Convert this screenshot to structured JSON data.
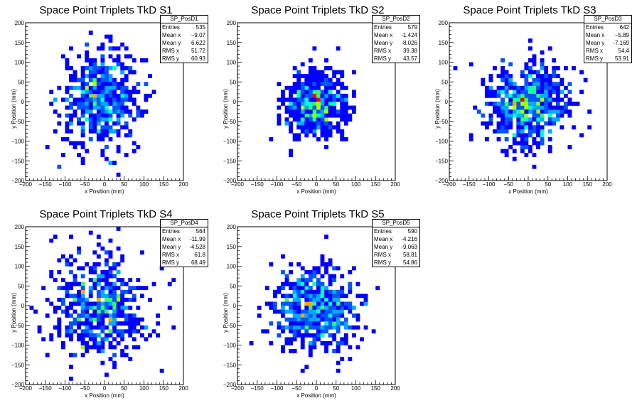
{
  "chart_data": [
    {
      "type": "heatmap",
      "title": "Space Point Triplets TkD S1",
      "xlabel": "x Position (mm)",
      "ylabel": "y Position (mm)",
      "xlim": [
        -200,
        200
      ],
      "ylim": [
        -200,
        200
      ],
      "xticks": [
        "−200",
        "−150",
        "−100",
        "−50",
        "0",
        "50",
        "100",
        "150",
        "200"
      ],
      "yticks": [
        "−200",
        "−150",
        "−100",
        "−50",
        "0",
        "50",
        "100",
        "150",
        "200"
      ],
      "stats": {
        "name": "SP_PosD1",
        "rows": [
          {
            "label": "Entries",
            "value": "535"
          },
          {
            "label": "Mean x",
            "value": "−9.07"
          },
          {
            "label": "Mean y",
            "value": "6.622"
          },
          {
            "label": "RMS x",
            "value": "51.72"
          },
          {
            "label": "RMS y",
            "value": "60.93"
          }
        ]
      },
      "distribution": {
        "entries": 535,
        "mean_x": -9.07,
        "mean_y": 6.622,
        "rms_x": 51.72,
        "rms_y": 60.93,
        "bin_width_mm": 10
      }
    },
    {
      "type": "heatmap",
      "title": "Space Point Triplets TkD S2",
      "xlabel": "x Position (mm)",
      "ylabel": "y Position (mm)",
      "xlim": [
        -200,
        200
      ],
      "ylim": [
        -200,
        200
      ],
      "xticks": [
        "−200",
        "−150",
        "−100",
        "−50",
        "0",
        "50",
        "100",
        "150",
        "200"
      ],
      "yticks": [
        "−200",
        "−150",
        "−100",
        "−50",
        "0",
        "50",
        "100",
        "150",
        "200"
      ],
      "stats": {
        "name": "SP_PosD2",
        "rows": [
          {
            "label": "Entries",
            "value": "579"
          },
          {
            "label": "Mean x",
            "value": "-1.424"
          },
          {
            "label": "Mean y",
            "value": "-8.026"
          },
          {
            "label": "RMS x",
            "value": "39.38"
          },
          {
            "label": "RMS y",
            "value": "43.57"
          }
        ]
      },
      "distribution": {
        "entries": 579,
        "mean_x": -1.424,
        "mean_y": -8.026,
        "rms_x": 39.38,
        "rms_y": 43.57,
        "bin_width_mm": 10
      }
    },
    {
      "type": "heatmap",
      "title": "Space Point Triplets TkD S3",
      "xlabel": "x Position (mm)",
      "ylabel": "y Position (mm)",
      "xlim": [
        -200,
        200
      ],
      "ylim": [
        -200,
        200
      ],
      "xticks": [
        "−200",
        "−150",
        "−100",
        "−50",
        "0",
        "50",
        "100",
        "150",
        "200"
      ],
      "yticks": [
        "−200",
        "−150",
        "−100",
        "−50",
        "0",
        "50",
        "100",
        "150",
        "200"
      ],
      "stats": {
        "name": "SP_PosD3",
        "rows": [
          {
            "label": "Entries",
            "value": "642"
          },
          {
            "label": "Mean x",
            "value": "−5.89"
          },
          {
            "label": "Mean y",
            "value": "-7.169"
          },
          {
            "label": "RMS x",
            "value": "54.4"
          },
          {
            "label": "RMS y",
            "value": "53.91"
          }
        ]
      },
      "distribution": {
        "entries": 642,
        "mean_x": -5.89,
        "mean_y": -7.169,
        "rms_x": 54.4,
        "rms_y": 53.91,
        "bin_width_mm": 10
      }
    },
    {
      "type": "heatmap",
      "title": "Space Point Triplets TkD S4",
      "xlabel": "x Position (mm)",
      "ylabel": "y Position (mm)",
      "xlim": [
        -200,
        200
      ],
      "ylim": [
        -200,
        200
      ],
      "xticks": [
        "−200",
        "−150",
        "−100",
        "−50",
        "0",
        "50",
        "100",
        "150",
        "200"
      ],
      "yticks": [
        "−200",
        "−150",
        "−100",
        "−50",
        "0",
        "50",
        "100",
        "150",
        "200"
      ],
      "stats": {
        "name": "SP_PosD4",
        "rows": [
          {
            "label": "Entries",
            "value": "564"
          },
          {
            "label": "Mean x",
            "value": "-11.99"
          },
          {
            "label": "Mean y",
            "value": "-4.528"
          },
          {
            "label": "RMS x",
            "value": "61.8"
          },
          {
            "label": "RMS y",
            "value": "68.49"
          }
        ]
      },
      "distribution": {
        "entries": 564,
        "mean_x": -11.99,
        "mean_y": -4.528,
        "rms_x": 61.8,
        "rms_y": 68.49,
        "bin_width_mm": 10
      }
    },
    {
      "type": "heatmap",
      "title": "Space Point Triplets TkD S5",
      "xlabel": "x Position (mm)",
      "ylabel": "y Position (mm)",
      "xlim": [
        -200,
        200
      ],
      "ylim": [
        -200,
        200
      ],
      "xticks": [
        "−200",
        "−150",
        "−100",
        "−50",
        "0",
        "50",
        "100",
        "150",
        "200"
      ],
      "yticks": [
        "−200",
        "−150",
        "−100",
        "−50",
        "0",
        "50",
        "100",
        "150",
        "200"
      ],
      "stats": {
        "name": "SP_PosD5",
        "rows": [
          {
            "label": "Entries",
            "value": "590"
          },
          {
            "label": "Mean x",
            "value": "-4.216"
          },
          {
            "label": "Mean y",
            "value": "-9.063"
          },
          {
            "label": "RMS x",
            "value": "58.81"
          },
          {
            "label": "RMS y",
            "value": "54.86"
          }
        ]
      },
      "distribution": {
        "entries": 590,
        "mean_x": -4.216,
        "mean_y": -9.063,
        "rms_x": 58.81,
        "rms_y": 54.86,
        "bin_width_mm": 10
      }
    }
  ],
  "palette": [
    "#0000ff",
    "#0055ff",
    "#00aaff",
    "#00ffcc",
    "#33ff66",
    "#aaff00",
    "#ffaa00",
    "#ff0000"
  ]
}
